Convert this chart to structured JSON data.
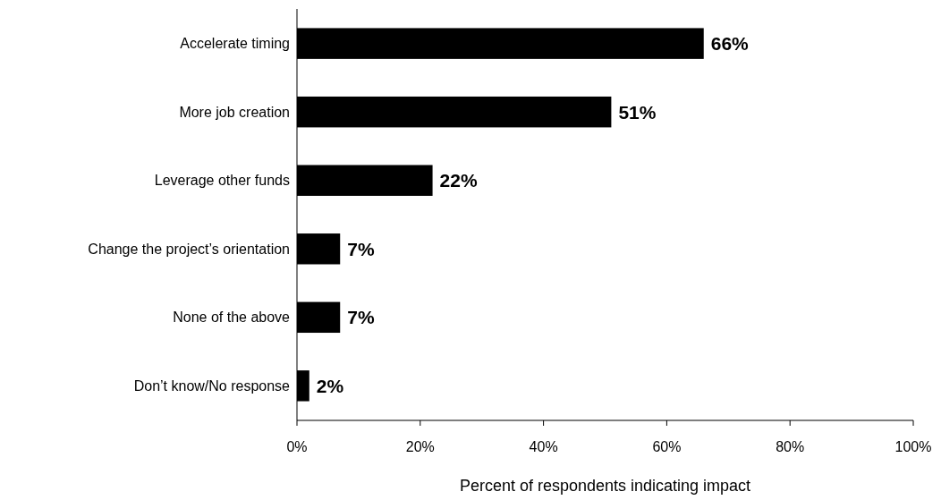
{
  "chart_data": {
    "type": "bar",
    "orientation": "horizontal",
    "xlabel": "Percent of respondents indicating impact",
    "categories": [
      "Accelerate timing",
      "More job creation",
      "Leverage other funds",
      "Change the project’s orientation",
      "None of the above",
      "Don’t know/No response"
    ],
    "values": [
      66,
      51,
      22,
      7,
      7,
      2
    ],
    "color": "#000000",
    "value_labels": [
      "66%",
      "51%",
      "22%",
      "7%",
      "7%",
      "2%"
    ],
    "xlim": [
      0,
      100
    ],
    "xticks": [
      {
        "value": 0,
        "label": "0%"
      },
      {
        "value": 20,
        "label": "20%"
      },
      {
        "value": 40,
        "label": "40%"
      },
      {
        "value": 60,
        "label": "60%"
      },
      {
        "value": 80,
        "label": "80%"
      },
      {
        "value": 100,
        "label": "100%"
      }
    ],
    "grid": false
  }
}
